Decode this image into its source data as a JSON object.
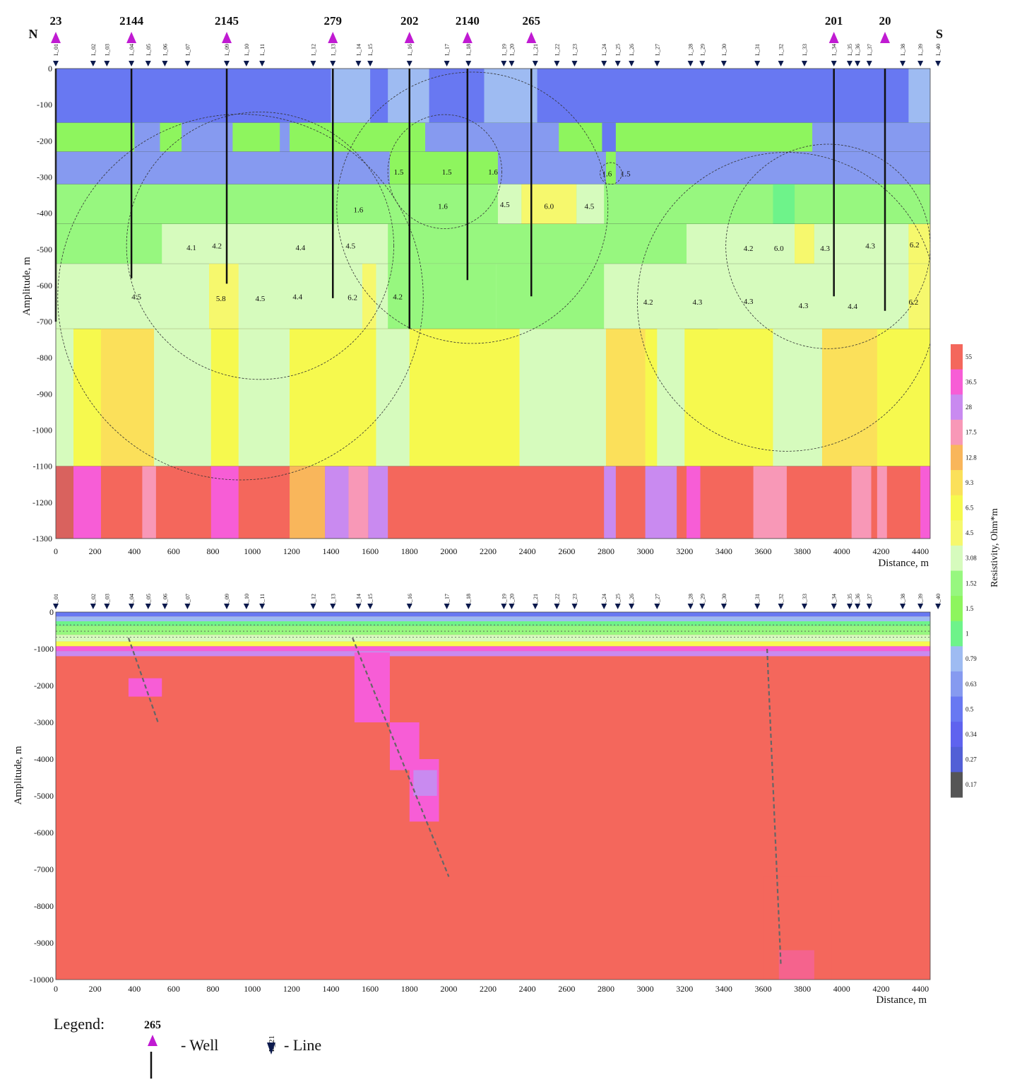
{
  "chart_data": [
    {
      "type": "heatmap",
      "title": "",
      "xlabel": "Distance, m",
      "ylabel": "Amplitude, m",
      "xlim": [
        0,
        4450
      ],
      "ylim": [
        -1300,
        0
      ],
      "x_ticks": [
        "0",
        "200",
        "400",
        "600",
        "800",
        "1000",
        "1200",
        "1400",
        "1600",
        "1800",
        "2000",
        "2200",
        "2400",
        "2600",
        "2800",
        "3000",
        "3200",
        "3400",
        "3600",
        "3800",
        "4000",
        "4200",
        "4400"
      ],
      "y_ticks": [
        "0",
        "-100",
        "-200",
        "-300",
        "-400",
        "-500",
        "-600",
        "-700",
        "-800",
        "-900",
        "-1000",
        "-1100",
        "-1200",
        "-1300"
      ],
      "direction_labels": {
        "left": "N",
        "right": "S"
      },
      "wells": [
        {
          "name": "23",
          "x": 0,
          "bottom": -700
        },
        {
          "name": "2144",
          "x": 385,
          "bottom": -580
        },
        {
          "name": "2145",
          "x": 870,
          "bottom": -595
        },
        {
          "name": "279",
          "x": 1410,
          "bottom": -635
        },
        {
          "name": "202",
          "x": 1800,
          "bottom": -720
        },
        {
          "name": "2140",
          "x": 2095,
          "bottom": -585
        },
        {
          "name": "265",
          "x": 2420,
          "bottom": -630
        },
        {
          "name": "201",
          "x": 3960,
          "bottom": -630
        },
        {
          "name": "20",
          "x": 4220,
          "bottom": -670
        }
      ],
      "layers": [
        {
          "top": 0,
          "bottom": -150,
          "resistivity": 0.5,
          "variants": [
            [
              1400,
              1600,
              0.79
            ],
            [
              1690,
              1900,
              0.79
            ],
            [
              2180,
              2450,
              0.79
            ],
            [
              4340,
              4450,
              0.79
            ]
          ]
        },
        {
          "top": -150,
          "bottom": -230,
          "resistivity": 1.5,
          "variants": [
            [
              400,
              530,
              0.63
            ],
            [
              640,
              900,
              0.63
            ],
            [
              1140,
              1190,
              0.63
            ],
            [
              1880,
              2560,
              0.63
            ],
            [
              2780,
              2850,
              0.5
            ],
            [
              3850,
              4450,
              0.63
            ]
          ]
        },
        {
          "top": -230,
          "bottom": -320,
          "resistivity": 0.63,
          "variants": [
            [
              1700,
              2250,
              1.5
            ],
            [
              2800,
              2850,
              1.5
            ]
          ]
        },
        {
          "top": -320,
          "bottom": -430,
          "resistivity": 1.52,
          "variants": [
            [
              2250,
              2370,
              3.08
            ],
            [
              2370,
              2650,
              4.5
            ],
            [
              2650,
              2790,
              3.08
            ],
            [
              3650,
              3760,
              1
            ]
          ]
        },
        {
          "top": -430,
          "bottom": -540,
          "resistivity": 1.52,
          "variants": [
            [
              540,
              1690,
              3.08
            ],
            [
              3210,
              3760,
              3.08
            ],
            [
              3760,
              3860,
              4.5
            ],
            [
              3860,
              4340,
              3.08
            ],
            [
              4340,
              4450,
              4.5
            ]
          ]
        },
        {
          "top": -540,
          "bottom": -720,
          "resistivity": 3.08,
          "variants": [
            [
              780,
              930,
              4.5
            ],
            [
              1560,
              1630,
              4.5
            ],
            [
              1690,
              2240,
              1.52
            ],
            [
              2240,
              2790,
              1.52
            ],
            [
              4340,
              4450,
              4.5
            ]
          ]
        },
        {
          "top": -720,
          "bottom": -1100,
          "resistivity": 6.5,
          "variants": [
            [
              0,
              90,
              3.08
            ],
            [
              230,
              500,
              9.3
            ],
            [
              500,
              790,
              3.08
            ],
            [
              930,
              1190,
              3.08
            ],
            [
              1630,
              1800,
              3.08
            ],
            [
              2360,
              2800,
              3.08
            ],
            [
              2800,
              3000,
              9.3
            ],
            [
              3060,
              3200,
              3.08
            ],
            [
              3370,
              3650,
              6.5
            ],
            [
              3650,
              3900,
              3.08
            ],
            [
              3900,
              4180,
              9.3
            ]
          ]
        },
        {
          "top": -1100,
          "bottom": -1300,
          "resistivity": 55,
          "variants": [
            [
              0,
              90,
              "dark"
            ],
            [
              90,
              230,
              36.5
            ],
            [
              440,
              510,
              17.5
            ],
            [
              790,
              930,
              36.5
            ],
            [
              1190,
              1370,
              12.8
            ],
            [
              1370,
              1490,
              28
            ],
            [
              1490,
              1590,
              17.5
            ],
            [
              1590,
              1690,
              28
            ],
            [
              2790,
              2850,
              28
            ],
            [
              3000,
              3160,
              28
            ],
            [
              3210,
              3280,
              36.5
            ],
            [
              3550,
              3720,
              17.5
            ],
            [
              4050,
              4150,
              17.5
            ],
            [
              4180,
              4230,
              17.5
            ],
            [
              4400,
              4450,
              36.5
            ]
          ]
        }
      ],
      "annotations": [
        {
          "text": "1.5",
          "x": 1745,
          "y": -285
        },
        {
          "text": "1.5",
          "x": 1990,
          "y": -285
        },
        {
          "text": "1.6",
          "x": 2225,
          "y": -285
        },
        {
          "text": "1.6",
          "x": 2805,
          "y": -290
        },
        {
          "text": "1.5",
          "x": 2900,
          "y": -290
        },
        {
          "text": "1.6",
          "x": 1540,
          "y": -390
        },
        {
          "text": "1.6",
          "x": 1970,
          "y": -380
        },
        {
          "text": "4.5",
          "x": 2285,
          "y": -375
        },
        {
          "text": "6.0",
          "x": 2510,
          "y": -380
        },
        {
          "text": "4.5",
          "x": 2715,
          "y": -380
        },
        {
          "text": "4.1",
          "x": 690,
          "y": -495
        },
        {
          "text": "4.2",
          "x": 820,
          "y": -490
        },
        {
          "text": "4.4",
          "x": 1245,
          "y": -495
        },
        {
          "text": "4.5",
          "x": 1500,
          "y": -490
        },
        {
          "text": "4.2",
          "x": 3525,
          "y": -497
        },
        {
          "text": "6.0",
          "x": 3680,
          "y": -497
        },
        {
          "text": "4.3",
          "x": 3915,
          "y": -497
        },
        {
          "text": "4.3",
          "x": 4145,
          "y": -490
        },
        {
          "text": "6.2",
          "x": 4370,
          "y": -487
        },
        {
          "text": "4.5",
          "x": 410,
          "y": -630
        },
        {
          "text": "5.8",
          "x": 840,
          "y": -635
        },
        {
          "text": "4.5",
          "x": 1040,
          "y": -635
        },
        {
          "text": "4.4",
          "x": 1230,
          "y": -630
        },
        {
          "text": "6.2",
          "x": 1510,
          "y": -632
        },
        {
          "text": "4.2",
          "x": 1740,
          "y": -630
        },
        {
          "text": "4.2",
          "x": 3015,
          "y": -645
        },
        {
          "text": "4.3",
          "x": 3265,
          "y": -645
        },
        {
          "text": "4.3",
          "x": 3525,
          "y": -643
        },
        {
          "text": "4.3",
          "x": 3805,
          "y": -655
        },
        {
          "text": "4.4",
          "x": 4055,
          "y": -657
        },
        {
          "text": "6.2",
          "x": 4365,
          "y": -645
        }
      ]
    },
    {
      "type": "heatmap",
      "title": "",
      "xlabel": "Distance, m",
      "ylabel": "Amplitude, m",
      "xlim": [
        0,
        4450
      ],
      "ylim": [
        -10000,
        0
      ],
      "x_ticks": [
        "0",
        "200",
        "400",
        "600",
        "800",
        "1000",
        "1200",
        "1400",
        "1600",
        "1800",
        "2000",
        "2200",
        "2400",
        "2600",
        "2800",
        "3000",
        "3200",
        "3400",
        "3600",
        "3800",
        "4000",
        "4200",
        "4400"
      ],
      "y_ticks": [
        "0",
        "-1000",
        "-2000",
        "-3000",
        "-4000",
        "-5000",
        "-6000",
        "-7000",
        "-8000",
        "-9000",
        "-10000"
      ],
      "background_resistivity": 55,
      "anomalies": [
        {
          "x": [
            370,
            540
          ],
          "y": [
            -1800,
            -2300
          ],
          "resistivity": 36.5
        },
        {
          "x": [
            1520,
            1700
          ],
          "y": [
            -1100,
            -3000
          ],
          "resistivity": 36.5
        },
        {
          "x": [
            1700,
            1850
          ],
          "y": [
            -3000,
            -4300
          ],
          "resistivity": 36.5
        },
        {
          "x": [
            1800,
            1950
          ],
          "y": [
            -4000,
            -5700
          ],
          "resistivity": 36.5
        },
        {
          "x": [
            1820,
            1940
          ],
          "y": [
            -4300,
            -5000
          ],
          "resistivity": 28
        },
        {
          "x": [
            3680,
            3860
          ],
          "y": [
            -9200,
            -10000
          ],
          "resistivity": 36.5
        },
        {
          "x": [
            3600,
            3950
          ],
          "y": [
            -7200,
            -10000
          ],
          "resistivity": 55
        }
      ],
      "faults": [
        {
          "x1": 370,
          "y1": -700,
          "x2": 520,
          "y2": -3000
        },
        {
          "x1": 1510,
          "y1": -700,
          "x2": 2000,
          "y2": -7200
        },
        {
          "x1": 3620,
          "y1": -1000,
          "x2": 3690,
          "y2": -9600
        }
      ]
    }
  ],
  "survey_lines": [
    "L_01",
    "L_02",
    "L_03",
    "L_04",
    "L_05",
    "L_06",
    "L_07",
    "L_09",
    "L_10",
    "L_11",
    "L_12",
    "L_13",
    "L_14",
    "L_15",
    "L_16",
    "L_17",
    "L_18",
    "L_19",
    "L_20",
    "L_21",
    "L_22",
    "L_23",
    "L_24",
    "L_25",
    "L_26",
    "L_27",
    "L_28",
    "L_29",
    "L_30",
    "L_31",
    "L_32",
    "L_33",
    "L_34",
    "L_35",
    "L_36",
    "L_37",
    "L_38",
    "L_39",
    "L_40"
  ],
  "survey_line_x": [
    0,
    190,
    260,
    385,
    470,
    555,
    670,
    870,
    970,
    1050,
    1310,
    1410,
    1540,
    1600,
    1800,
    1990,
    2100,
    2280,
    2320,
    2440,
    2550,
    2640,
    2790,
    2860,
    2930,
    3060,
    3230,
    3290,
    3400,
    3570,
    3690,
    3810,
    3960,
    4040,
    4080,
    4140,
    4310,
    4400,
    4490
  ],
  "colorbar": {
    "label": "Resistivity, Ohm*m",
    "ticks": [
      "55",
      "36.5",
      "28",
      "17.5",
      "12.8",
      "9.3",
      "6.5",
      "4.5",
      "3.08",
      "1.52",
      "1.5",
      "1",
      "0.79",
      "0.63",
      "0.5",
      "0.34",
      "0.27",
      "0.17"
    ],
    "colors": [
      "#f4675c",
      "#f75dd6",
      "#c98af0",
      "#f898b7",
      "#f9b65b",
      "#fbe05a",
      "#f6f94e",
      "#f6f86d",
      "#d6fbbd",
      "#97f77f",
      "#8ef55e",
      "#6ef38a",
      "#9ebbf2",
      "#869af0",
      "#6878f2",
      "#5f63ef",
      "#525fd6",
      "#555555"
    ]
  },
  "legend": {
    "title": "Legend:",
    "well_example": "265",
    "well_label": "- Well",
    "line_example": "L_21",
    "line_label": "- Line"
  }
}
